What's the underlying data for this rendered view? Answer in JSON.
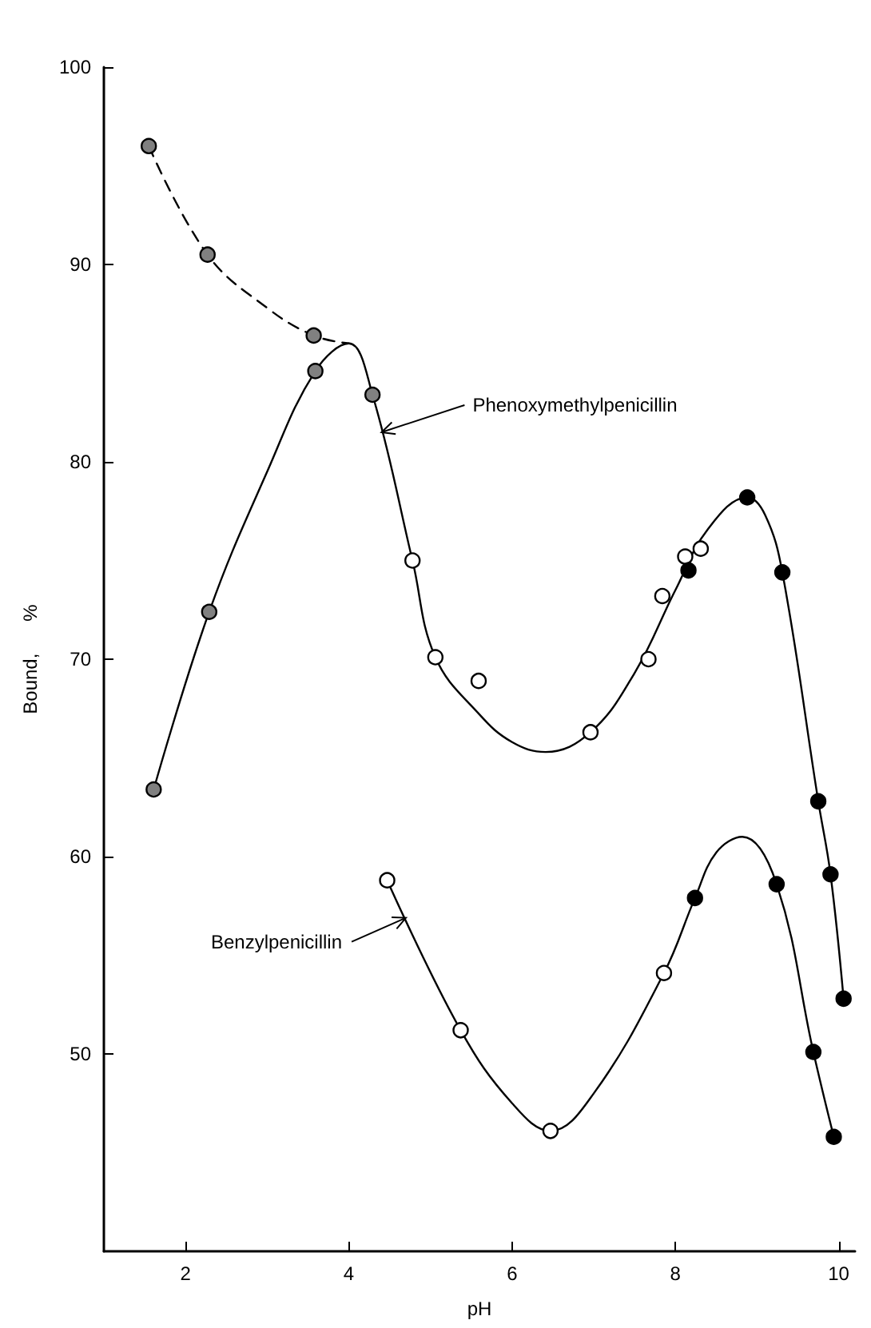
{
  "chart_data": {
    "type": "line",
    "xlabel": "pH",
    "ylabel": "Bound,      %",
    "xlim": [
      1,
      10.2
    ],
    "xticks": [
      2,
      4,
      6,
      8,
      10
    ],
    "ylim": [
      40,
      100
    ],
    "yticks": [
      50,
      60,
      70,
      80,
      90,
      100
    ],
    "grid": false,
    "marker": "circle",
    "series": [
      {
        "marker": "none",
        "line_style": "solid",
        "color": "#000000",
        "x": [
          1.61,
          2.29,
          3.0,
          3.59,
          4.0,
          4.29,
          4.78,
          5.06,
          5.6,
          6.0,
          6.41,
          6.96,
          7.5,
          8.0,
          8.4,
          8.88,
          9.1,
          9.31,
          9.75,
          9.9,
          10.06
        ],
        "values": [
          63.4,
          72.4,
          79.5,
          84.6,
          86.0,
          83.4,
          75.0,
          70.1,
          67.2,
          65.8,
          65.3,
          66.3,
          69.3,
          73.5,
          76.6,
          78.2,
          77.3,
          74.4,
          62.8,
          59.1,
          52.8
        ]
      },
      {
        "marker": "none",
        "line_style": "dashed",
        "color": "#000000",
        "x": [
          1.55,
          2.27,
          3.0,
          3.57,
          4.0
        ],
        "values": [
          96.0,
          90.5,
          87.8,
          86.4,
          86.0
        ]
      },
      {
        "marker": "none",
        "line_style": "solid",
        "color": "#000000",
        "x": [
          4.47,
          5.37,
          6.0,
          6.47,
          7.0,
          7.86,
          8.24,
          8.5,
          8.82,
          9.24,
          9.69,
          9.94
        ],
        "values": [
          58.8,
          51.2,
          47.5,
          46.1,
          48.0,
          54.1,
          57.9,
          60.2,
          61.0,
          58.6,
          50.1,
          45.8
        ]
      },
      {
        "type": "scatter",
        "color": "#808080",
        "x": [
          1.55,
          2.27,
          3.57,
          1.61,
          2.29,
          3.59,
          4.29
        ],
        "values": [
          96.0,
          90.5,
          86.4,
          63.4,
          72.4,
          84.6,
          83.4
        ]
      },
      {
        "type": "scatter",
        "color": "#ffffff",
        "x": [
          4.78,
          5.06,
          5.59,
          6.96,
          7.67,
          7.84,
          8.12,
          8.31,
          4.47,
          5.37,
          6.47,
          7.86
        ],
        "values": [
          75.0,
          70.1,
          68.9,
          66.3,
          70.0,
          73.2,
          75.2,
          75.6,
          58.8,
          51.2,
          46.1,
          54.1
        ]
      },
      {
        "type": "scatter",
        "color": "#000000",
        "x": [
          8.16,
          8.88,
          9.31,
          9.75,
          9.9,
          10.06,
          8.24,
          9.24,
          9.69,
          9.94
        ],
        "values": [
          74.5,
          78.2,
          74.4,
          62.8,
          59.1,
          52.8,
          57.9,
          58.6,
          50.1,
          45.8
        ]
      }
    ],
    "annotations": [
      {
        "text": "Phenoxymethylpenicillin",
        "x": 4.4,
        "y": 81.5
      },
      {
        "text": "Benzylpenicillin",
        "x": 4.7,
        "y": 56.9
      }
    ]
  }
}
